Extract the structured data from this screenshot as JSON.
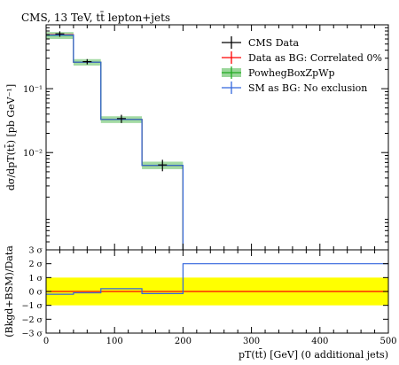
{
  "chart_data": [
    {
      "type": "line",
      "panel": "main",
      "title": "CMS, 13 TeV, tt̄ lepton+jets",
      "ylabel": "dσ/dpT(tt̄) [pb GeV⁻¹]",
      "yscale": "log",
      "xlim": [
        0,
        500
      ],
      "ylim": [
        0.0003,
        1.0
      ],
      "y_tick_labels": [
        "10⁻¹",
        "10⁻²"
      ],
      "bin_edges": [
        0,
        40,
        80,
        140,
        200
      ],
      "legend_position": "top-right",
      "series": [
        {
          "name": "CMS Data",
          "color": "#000000",
          "style": "points",
          "x": [
            20,
            60,
            110,
            170
          ],
          "values": [
            0.72,
            0.265,
            0.034,
            0.0064
          ],
          "errors": [
            0.07,
            0.025,
            0.005,
            0.0013
          ]
        },
        {
          "name": "Data as BG: Correlated 0%",
          "color": "#ff0000",
          "style": "histogram",
          "values": [
            0.7,
            0.26,
            0.033,
            0.0063
          ]
        },
        {
          "name": "PowhegBoxZpWp",
          "color": "#22aa22",
          "band_color": "#99d699",
          "style": "histogram-band",
          "values": [
            0.68,
            0.26,
            0.033,
            0.0063
          ],
          "band_low": [
            0.6,
            0.23,
            0.029,
            0.0055
          ],
          "band_high": [
            0.77,
            0.29,
            0.037,
            0.0072
          ]
        },
        {
          "name": "SM as BG: No exclusion",
          "color": "#3366dd",
          "style": "histogram",
          "values": [
            0.69,
            0.26,
            0.033,
            0.0063
          ]
        }
      ]
    },
    {
      "type": "line",
      "panel": "ratio",
      "ylabel": "(Bkgd+BSM)/Data",
      "xlabel": "pT(tt̄) [GeV] (0 additional jets)",
      "xlim": [
        0,
        500
      ],
      "ylim": [
        -3,
        3
      ],
      "x_ticks": [
        0,
        100,
        200,
        300,
        400,
        500
      ],
      "y_ticks": [
        -3,
        -2,
        -1,
        0,
        1,
        2,
        3
      ],
      "y_tick_labels": [
        "−3 σ",
        "−2 σ",
        "−1 σ",
        "0 σ",
        "1 σ",
        "2 σ",
        "3 σ"
      ],
      "band": [
        -1,
        1
      ],
      "band_color": "#ffff00",
      "bin_edges": [
        0,
        40,
        80,
        140,
        200,
        500
      ],
      "series": [
        {
          "name": "Data as BG: Correlated 0%",
          "color": "#ff0000",
          "values": [
            0,
            0,
            0,
            0,
            0
          ]
        },
        {
          "name": "SM as BG: No exclusion",
          "color": "#3366dd",
          "values": [
            -0.2,
            -0.1,
            0.2,
            -0.15,
            2.0
          ]
        }
      ]
    }
  ]
}
